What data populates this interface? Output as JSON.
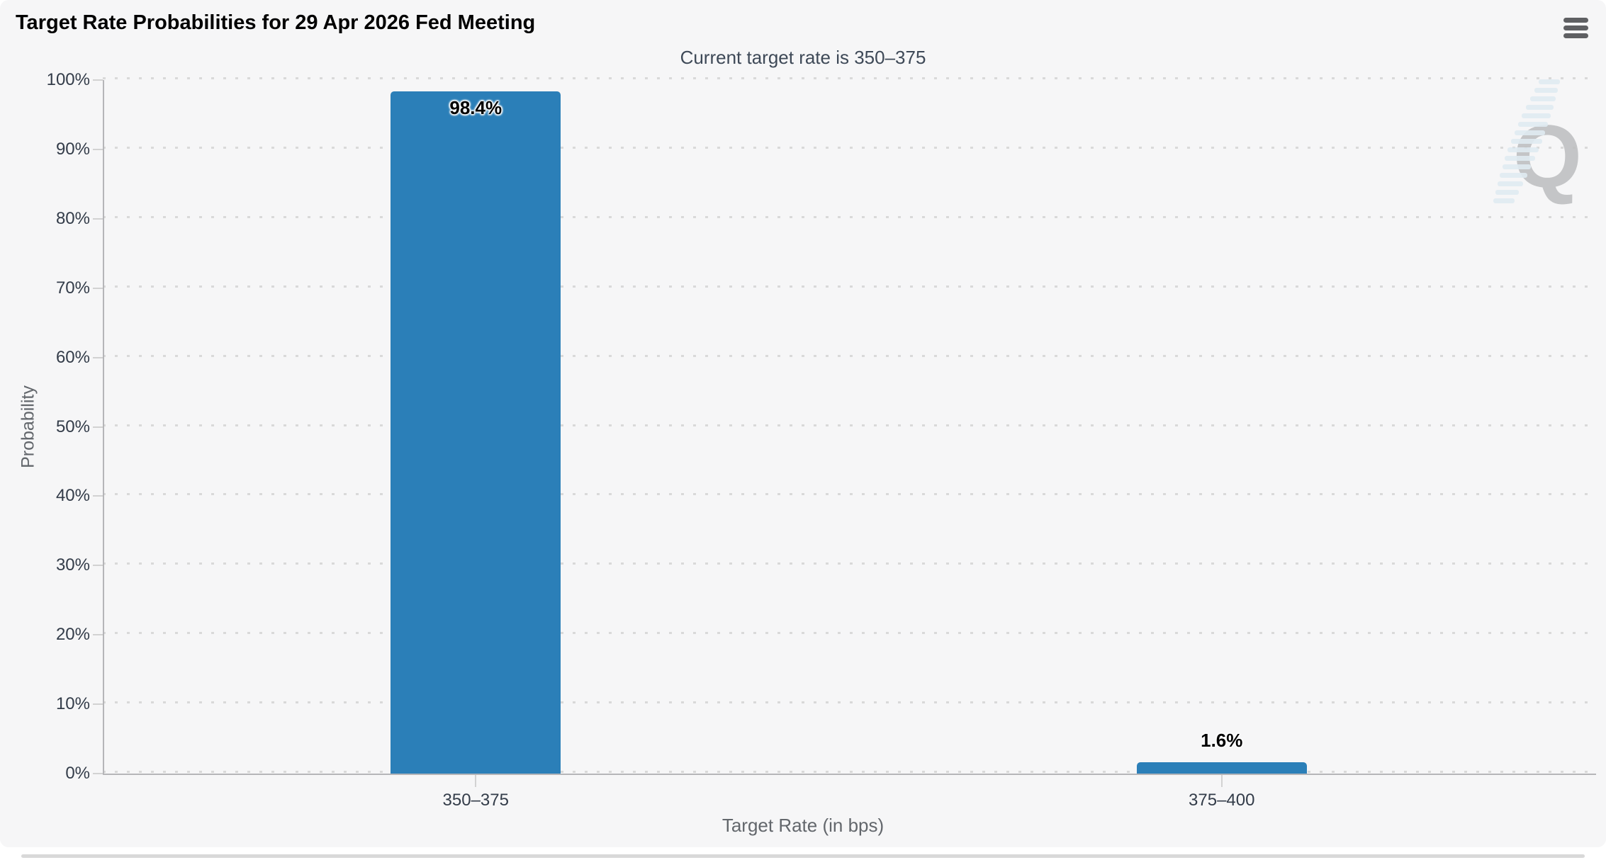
{
  "header": {
    "title": "Target Rate Probabilities for 29 Apr 2026 Fed Meeting"
  },
  "menu": {
    "icon": "hamburger-icon"
  },
  "watermark": {
    "letter": "Q"
  },
  "chart_data": {
    "type": "bar",
    "title": "Target Rate Probabilities for 29 Apr 2026 Fed Meeting",
    "subtitle": "Current target rate is 350–375",
    "categories": [
      "350–375",
      "375–400"
    ],
    "values": [
      98.4,
      1.6
    ],
    "value_labels": [
      "98.4%",
      "1.6%"
    ],
    "xlabel": "Target Rate (in bps)",
    "ylabel": "Probability",
    "ylim": [
      0,
      100
    ],
    "ytick_step": 10,
    "ytick_labels": [
      "0%",
      "10%",
      "20%",
      "30%",
      "40%",
      "50%",
      "60%",
      "70%",
      "80%",
      "90%",
      "100%"
    ],
    "grid": "dotted-horizontal",
    "legend": "none",
    "bar_color": "#2b7fb8"
  },
  "colors": {
    "card_background": "#f6f6f7",
    "page_background": "#ffffff",
    "bar": "#2b7fb8",
    "axis_line": "#b5b5b8",
    "gridline": "#d9d9d9",
    "tick_label": "#333c49",
    "axis_title": "#63676c",
    "title": "#000000",
    "subtitle": "#3e4957",
    "menu_icon": "#5f6063",
    "watermark_q": "#bcbdbf",
    "watermark_stripes": "#dce9f1"
  }
}
